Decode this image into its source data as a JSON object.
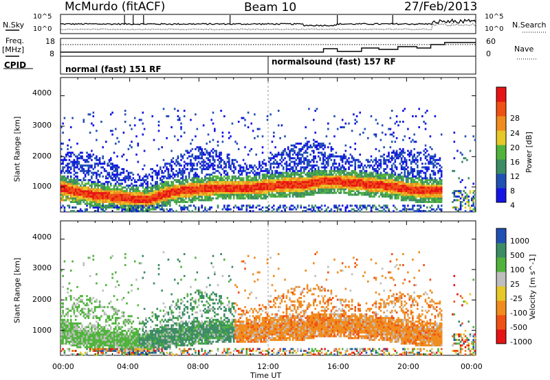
{
  "header": {
    "station": "McMurdo (fitACF)",
    "beam": "Beam 10",
    "date": "27/Feb/2013"
  },
  "noise_panel": {
    "left_label": "N.Sky",
    "right_label": "N.Search",
    "left_ticks": [
      "10^5",
      "10^0"
    ],
    "right_ticks": [
      "10^5",
      "10^0"
    ]
  },
  "freq_panel": {
    "left_label_top": "Freq.",
    "left_label_unit": "[MHz]",
    "right_label": "Nave",
    "left_ticks": [
      "18",
      "8"
    ],
    "right_ticks": [
      "60",
      "0"
    ]
  },
  "cpid": {
    "label": "CPID",
    "modes": [
      {
        "name": "normal (fast) 151 RF",
        "start_hour": 0
      },
      {
        "name": "normalsound (fast) 157 RF",
        "start_hour": 12
      }
    ]
  },
  "colors": {
    "power": [
      "#1414e6",
      "#2050b4",
      "#3c8c64",
      "#50b43c",
      "#e6c828",
      "#f08c1e",
      "#f05014",
      "#e61414"
    ],
    "velocity": [
      "#e61414",
      "#f05014",
      "#f08c1e",
      "#e6c828",
      "#bebebe",
      "#50b43c",
      "#3c8c64",
      "#2050b4"
    ]
  },
  "chart_data": [
    {
      "type": "heatmap",
      "name": "power",
      "ylabel": "Slant Range [km]",
      "xlabel": "Time UT",
      "xlim": [
        0,
        24
      ],
      "ylim": [
        180,
        4600
      ],
      "x_ticks": [
        "00:00",
        "04:00",
        "08:00",
        "12:00",
        "16:00",
        "20:00",
        "00:00"
      ],
      "y_ticks": [
        1000,
        2000,
        3000,
        4000
      ],
      "colorbar": {
        "label": "Power [dB]",
        "ticks": [
          4,
          8,
          12,
          16,
          20,
          24,
          28
        ],
        "range": [
          0,
          32
        ]
      },
      "main_echo_band_km": [
        [
          0.0,
          950
        ],
        [
          1.0,
          800
        ],
        [
          2.0,
          700
        ],
        [
          3.0,
          650
        ],
        [
          4.0,
          600
        ],
        [
          5.0,
          550
        ],
        [
          6.0,
          750
        ],
        [
          7.0,
          850
        ],
        [
          8.0,
          900
        ],
        [
          9.0,
          950
        ],
        [
          10.0,
          950
        ],
        [
          11.0,
          950
        ],
        [
          12.0,
          1000
        ],
        [
          13.0,
          1050
        ],
        [
          14.0,
          1050
        ],
        [
          15.0,
          1150
        ],
        [
          16.0,
          1150
        ],
        [
          17.0,
          1100
        ],
        [
          18.0,
          1050
        ],
        [
          19.0,
          1000
        ],
        [
          20.0,
          900
        ],
        [
          21.0,
          850
        ],
        [
          22.0,
          850
        ]
      ]
    },
    {
      "type": "heatmap",
      "name": "velocity",
      "ylabel": "Slant Range [km]",
      "xlabel": "Time UT",
      "xlim": [
        0,
        24
      ],
      "ylim": [
        180,
        4600
      ],
      "x_ticks": [
        "00:00",
        "04:00",
        "08:00",
        "12:00",
        "16:00",
        "20:00",
        "00:00"
      ],
      "y_ticks": [
        1000,
        2000,
        3000,
        4000
      ],
      "colorbar": {
        "label": "Velocity [m s^-1]",
        "ticks": [
          -1000,
          -500,
          -100,
          -25,
          25,
          100,
          500,
          1000
        ]
      }
    }
  ]
}
